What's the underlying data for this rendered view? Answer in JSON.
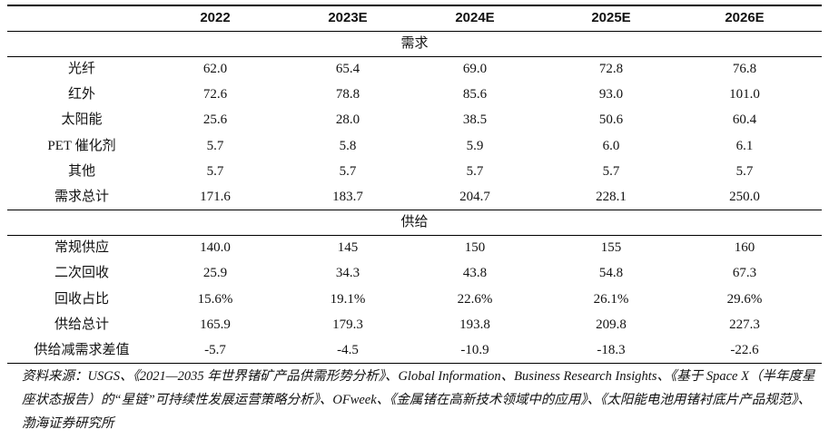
{
  "table": {
    "header": [
      "",
      "2022",
      "2023E",
      "2024E",
      "2025E",
      "2026E"
    ],
    "sections": [
      {
        "title": "需求",
        "rows": [
          [
            "光纤",
            "62.0",
            "65.4",
            "69.0",
            "72.8",
            "76.8"
          ],
          [
            "红外",
            "72.6",
            "78.8",
            "85.6",
            "93.0",
            "101.0"
          ],
          [
            "太阳能",
            "25.6",
            "28.0",
            "38.5",
            "50.6",
            "60.4"
          ],
          [
            "PET 催化剂",
            "5.7",
            "5.8",
            "5.9",
            "6.0",
            "6.1"
          ],
          [
            "其他",
            "5.7",
            "5.7",
            "5.7",
            "5.7",
            "5.7"
          ],
          [
            "需求总计",
            "171.6",
            "183.7",
            "204.7",
            "228.1",
            "250.0"
          ]
        ]
      },
      {
        "title": "供给",
        "rows": [
          [
            "常规供应",
            "140.0",
            "145",
            "150",
            "155",
            "160"
          ],
          [
            "二次回收",
            "25.9",
            "34.3",
            "43.8",
            "54.8",
            "67.3"
          ],
          [
            "回收占比",
            "15.6%",
            "19.1%",
            "22.6%",
            "26.1%",
            "29.6%"
          ],
          [
            "供给总计",
            "165.9",
            "179.3",
            "193.8",
            "209.8",
            "227.3"
          ],
          [
            "供给减需求差值",
            "-5.7",
            "-4.5",
            "-10.9",
            "-18.3",
            "-22.6"
          ]
        ]
      }
    ]
  },
  "source": "资料来源：USGS、《2021—2035 年世界锗矿产品供需形势分析》、Global Information、Business Research Insights、《基于 Space X（半年度星座状态报告）的“星链”可持续性发展运营策略分析》、OFweek、《金属锗在高新技术领域中的应用》、《太阳能电池用锗衬底片产品规范》、渤海证券研究所"
}
